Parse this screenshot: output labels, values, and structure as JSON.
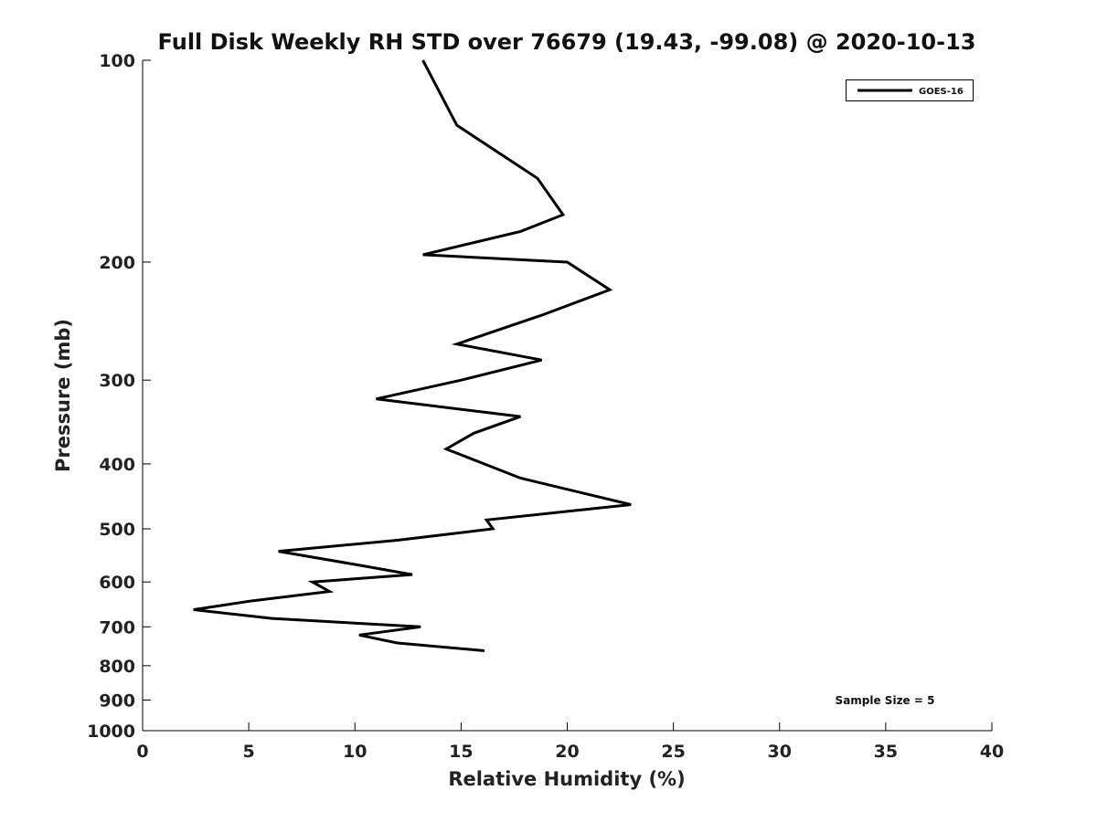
{
  "chart_data": {
    "type": "line",
    "title": "Full Disk Weekly RH STD over 76679 (19.43, -99.08) @ 2020-10-13",
    "xlabel": "Relative Humidity (%)",
    "ylabel": "Pressure (mb)",
    "xlim": [
      0,
      40
    ],
    "ylim": [
      100,
      1000
    ],
    "y_scale": "log",
    "y_reversed": true,
    "grid": false,
    "x_ticks": [
      0,
      5,
      10,
      15,
      20,
      25,
      30,
      35,
      40
    ],
    "x_tick_labels": [
      "0",
      "5",
      "10",
      "15",
      "20",
      "25",
      "30",
      "35",
      "40"
    ],
    "y_ticks": [
      100,
      200,
      300,
      400,
      500,
      600,
      700,
      800,
      900,
      1000
    ],
    "y_tick_labels": [
      "100",
      "200",
      "300",
      "400",
      "500",
      "600",
      "700",
      "800",
      "900",
      "1000"
    ],
    "legend_position": "top-right",
    "series": [
      {
        "name": "GOES-16",
        "color": "#000000",
        "points": [
          {
            "x": 13.2,
            "y": 100
          },
          {
            "x": 14.8,
            "y": 125
          },
          {
            "x": 18.6,
            "y": 150
          },
          {
            "x": 19.8,
            "y": 170
          },
          {
            "x": 17.8,
            "y": 180
          },
          {
            "x": 13.2,
            "y": 195
          },
          {
            "x": 20.0,
            "y": 200
          },
          {
            "x": 22.0,
            "y": 220
          },
          {
            "x": 18.8,
            "y": 240
          },
          {
            "x": 14.8,
            "y": 265
          },
          {
            "x": 18.8,
            "y": 280
          },
          {
            "x": 15.0,
            "y": 300
          },
          {
            "x": 11.0,
            "y": 320
          },
          {
            "x": 17.8,
            "y": 340
          },
          {
            "x": 15.6,
            "y": 360
          },
          {
            "x": 14.3,
            "y": 380
          },
          {
            "x": 17.8,
            "y": 420
          },
          {
            "x": 23.0,
            "y": 460
          },
          {
            "x": 16.2,
            "y": 485
          },
          {
            "x": 16.5,
            "y": 500
          },
          {
            "x": 12.0,
            "y": 520
          },
          {
            "x": 6.4,
            "y": 540
          },
          {
            "x": 10.0,
            "y": 565
          },
          {
            "x": 12.7,
            "y": 585
          },
          {
            "x": 8.0,
            "y": 600
          },
          {
            "x": 8.8,
            "y": 620
          },
          {
            "x": 5.2,
            "y": 640
          },
          {
            "x": 2.4,
            "y": 660
          },
          {
            "x": 6.1,
            "y": 680
          },
          {
            "x": 13.1,
            "y": 700
          },
          {
            "x": 10.2,
            "y": 720
          },
          {
            "x": 12.0,
            "y": 740
          },
          {
            "x": 16.1,
            "y": 760
          }
        ]
      }
    ],
    "annotation": "Sample Size = 5"
  }
}
